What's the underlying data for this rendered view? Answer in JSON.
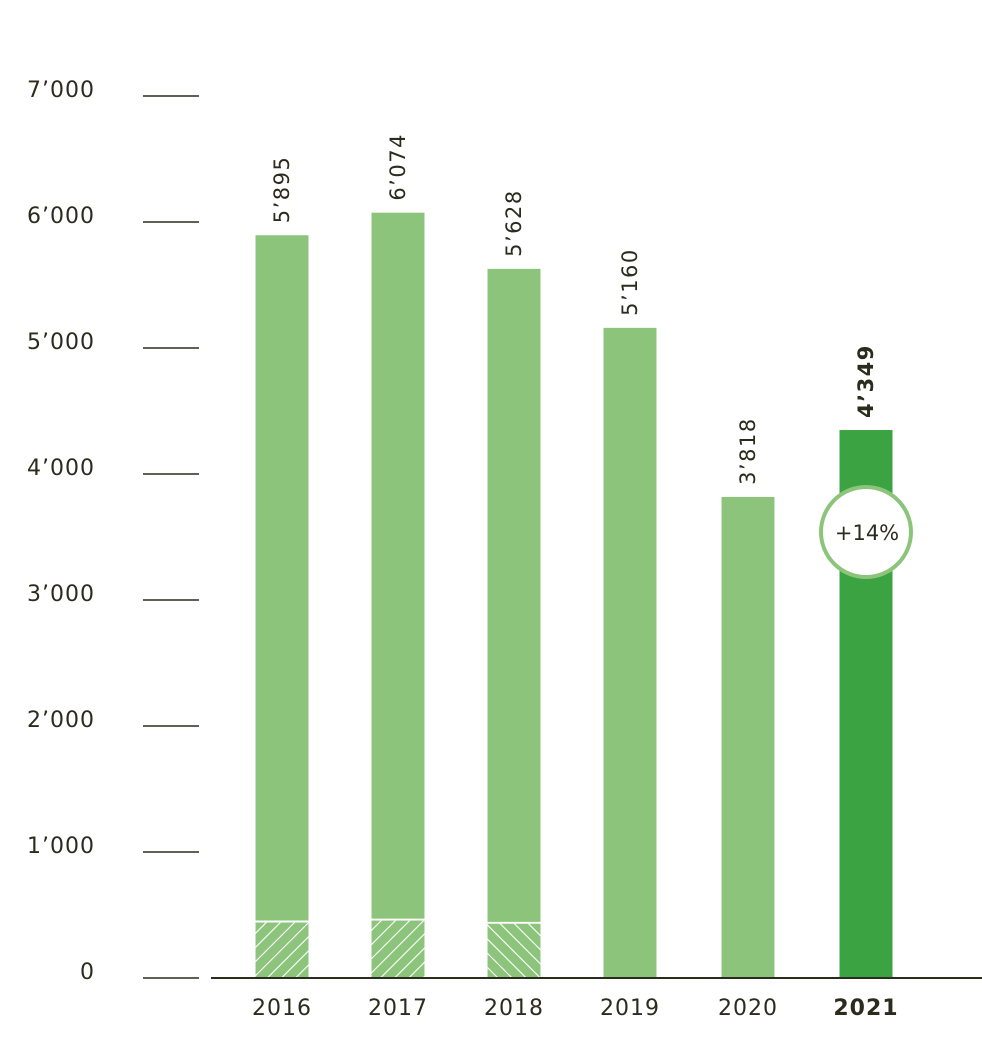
{
  "chart_data": {
    "type": "bar",
    "categories": [
      "2016",
      "2017",
      "2018",
      "2019",
      "2020",
      "2021"
    ],
    "values": [
      5895,
      6074,
      5628,
      5160,
      3818,
      4349
    ],
    "value_labels": [
      "5’895",
      "6’074",
      "5’628",
      "5’160",
      "3’818",
      "4’349"
    ],
    "hatched_segment_values": [
      440,
      455,
      430,
      0,
      0,
      0
    ],
    "highlight_category": "2021",
    "ylim": [
      0,
      7000
    ],
    "yticks": [
      0,
      1000,
      2000,
      3000,
      4000,
      5000,
      6000,
      7000
    ],
    "ytick_labels": [
      "0",
      "1’000",
      "2’000",
      "3’000",
      "4’000",
      "5’000",
      "6’000",
      "7’000"
    ],
    "annotation": {
      "category": "2021",
      "text": "+14%"
    },
    "colors": {
      "bar": "#8cc47c",
      "bar_highlight": "#3ca342",
      "hatch_line": "#ffffff",
      "badge_border": "#8cc47c",
      "axis": "#2b2b1e"
    }
  }
}
